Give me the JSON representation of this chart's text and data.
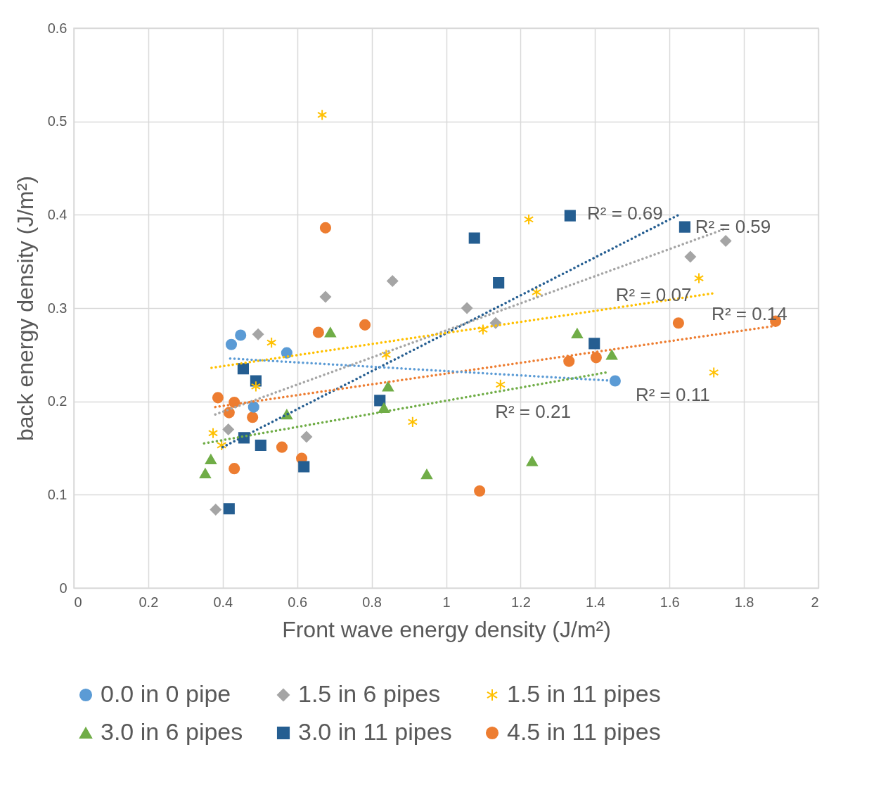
{
  "chart_data": {
    "type": "scatter",
    "xlabel": "Front wave energy density (J/m²)",
    "ylabel": "back energy density (J/m²)",
    "xlim": [
      0,
      2
    ],
    "xticks": [
      0,
      0.2,
      0.4,
      0.6,
      0.8,
      1,
      1.2,
      1.4,
      1.6,
      1.8,
      2
    ],
    "ylim": [
      0,
      0.6
    ],
    "yticks": [
      0,
      0.1,
      0.2,
      0.3,
      0.4,
      0.5,
      0.6
    ],
    "grid": true,
    "legend": "bottom",
    "series": [
      {
        "name": "0.0 in 0 pipe",
        "color": "#5b9bd5",
        "marker": "circle",
        "x": [
          0.423,
          0.448,
          0.483,
          0.572,
          1.454
        ],
        "values": [
          0.261,
          0.271,
          0.194,
          0.252,
          0.222
        ]
      },
      {
        "name": "1.5 in 6 pipes",
        "color": "#a5a5a5",
        "marker": "diamond",
        "x": [
          0.381,
          0.415,
          0.495,
          0.625,
          0.676,
          0.856,
          1.056,
          1.133,
          1.656,
          1.751
        ],
        "values": [
          0.084,
          0.17,
          0.272,
          0.162,
          0.312,
          0.329,
          0.3,
          0.284,
          0.355,
          0.372
        ]
      },
      {
        "name": "1.5 in 11 pipes",
        "color": "#ffc000",
        "marker": "cross",
        "x": [
          0.374,
          0.397,
          0.489,
          0.531,
          0.667,
          0.839,
          0.91,
          1.099,
          1.146,
          1.222,
          1.243,
          1.679,
          1.719
        ],
        "values": [
          0.166,
          0.153,
          0.216,
          0.263,
          0.507,
          0.25,
          0.178,
          0.277,
          0.218,
          0.395,
          0.317,
          0.332,
          0.231
        ]
      },
      {
        "name": "3.0 in 6 pipes",
        "color": "#70ad47",
        "marker": "triangle",
        "x": [
          0.353,
          0.368,
          0.572,
          0.689,
          0.833,
          0.844,
          0.948,
          1.231,
          1.352,
          1.445
        ],
        "values": [
          0.123,
          0.138,
          0.186,
          0.274,
          0.193,
          0.216,
          0.122,
          0.136,
          0.273,
          0.25
        ]
      },
      {
        "name": "3.0 in 11 pipes",
        "color": "#255e91",
        "marker": "square",
        "x": [
          0.417,
          0.455,
          0.457,
          0.489,
          0.502,
          0.618,
          0.822,
          1.076,
          1.141,
          1.333,
          1.398,
          1.641
        ],
        "values": [
          0.085,
          0.235,
          0.161,
          0.222,
          0.153,
          0.13,
          0.201,
          0.375,
          0.327,
          0.399,
          0.262,
          0.387
        ]
      },
      {
        "name": "4.5 in 11 pipes",
        "color": "#ed7d31",
        "marker": "circle",
        "x": [
          0.387,
          0.417,
          0.431,
          0.431,
          0.48,
          0.559,
          0.612,
          0.657,
          0.676,
          0.782,
          1.09,
          1.33,
          1.403,
          1.624,
          1.885
        ],
        "values": [
          0.204,
          0.188,
          0.128,
          0.199,
          0.183,
          0.151,
          0.139,
          0.274,
          0.386,
          0.282,
          0.104,
          0.243,
          0.247,
          0.284,
          0.286
        ]
      },
      {
        "type": "line",
        "color": "#255e91",
        "line_style": "dotted",
        "marker": "none",
        "x": [
          0.4,
          1.63
        ],
        "values": [
          0.151,
          0.401
        ]
      },
      {
        "type": "line",
        "color": "#a5a5a5",
        "line_style": "dotted",
        "marker": "none",
        "x": [
          0.38,
          1.75
        ],
        "values": [
          0.186,
          0.385
        ]
      },
      {
        "type": "line",
        "color": "#ffc000",
        "line_style": "dotted",
        "marker": "none",
        "x": [
          0.37,
          1.72
        ],
        "values": [
          0.236,
          0.316
        ]
      },
      {
        "type": "line",
        "color": "#ed7d31",
        "line_style": "dotted",
        "marker": "none",
        "x": [
          0.38,
          1.885
        ],
        "values": [
          0.194,
          0.281
        ]
      },
      {
        "type": "line",
        "color": "#5b9bd5",
        "line_style": "dotted",
        "marker": "none",
        "x": [
          0.42,
          1.454
        ],
        "values": [
          0.246,
          0.222
        ]
      },
      {
        "type": "line",
        "color": "#70ad47",
        "line_style": "dotted",
        "marker": "none",
        "x": [
          0.35,
          1.43
        ],
        "values": [
          0.155,
          0.231
        ]
      }
    ],
    "annotations": [
      "R² = 0.69",
      "R² = 0.59",
      "R² = 0.07",
      "R² = 0.14",
      "R² = 0.11",
      "R² = 0.21"
    ]
  }
}
